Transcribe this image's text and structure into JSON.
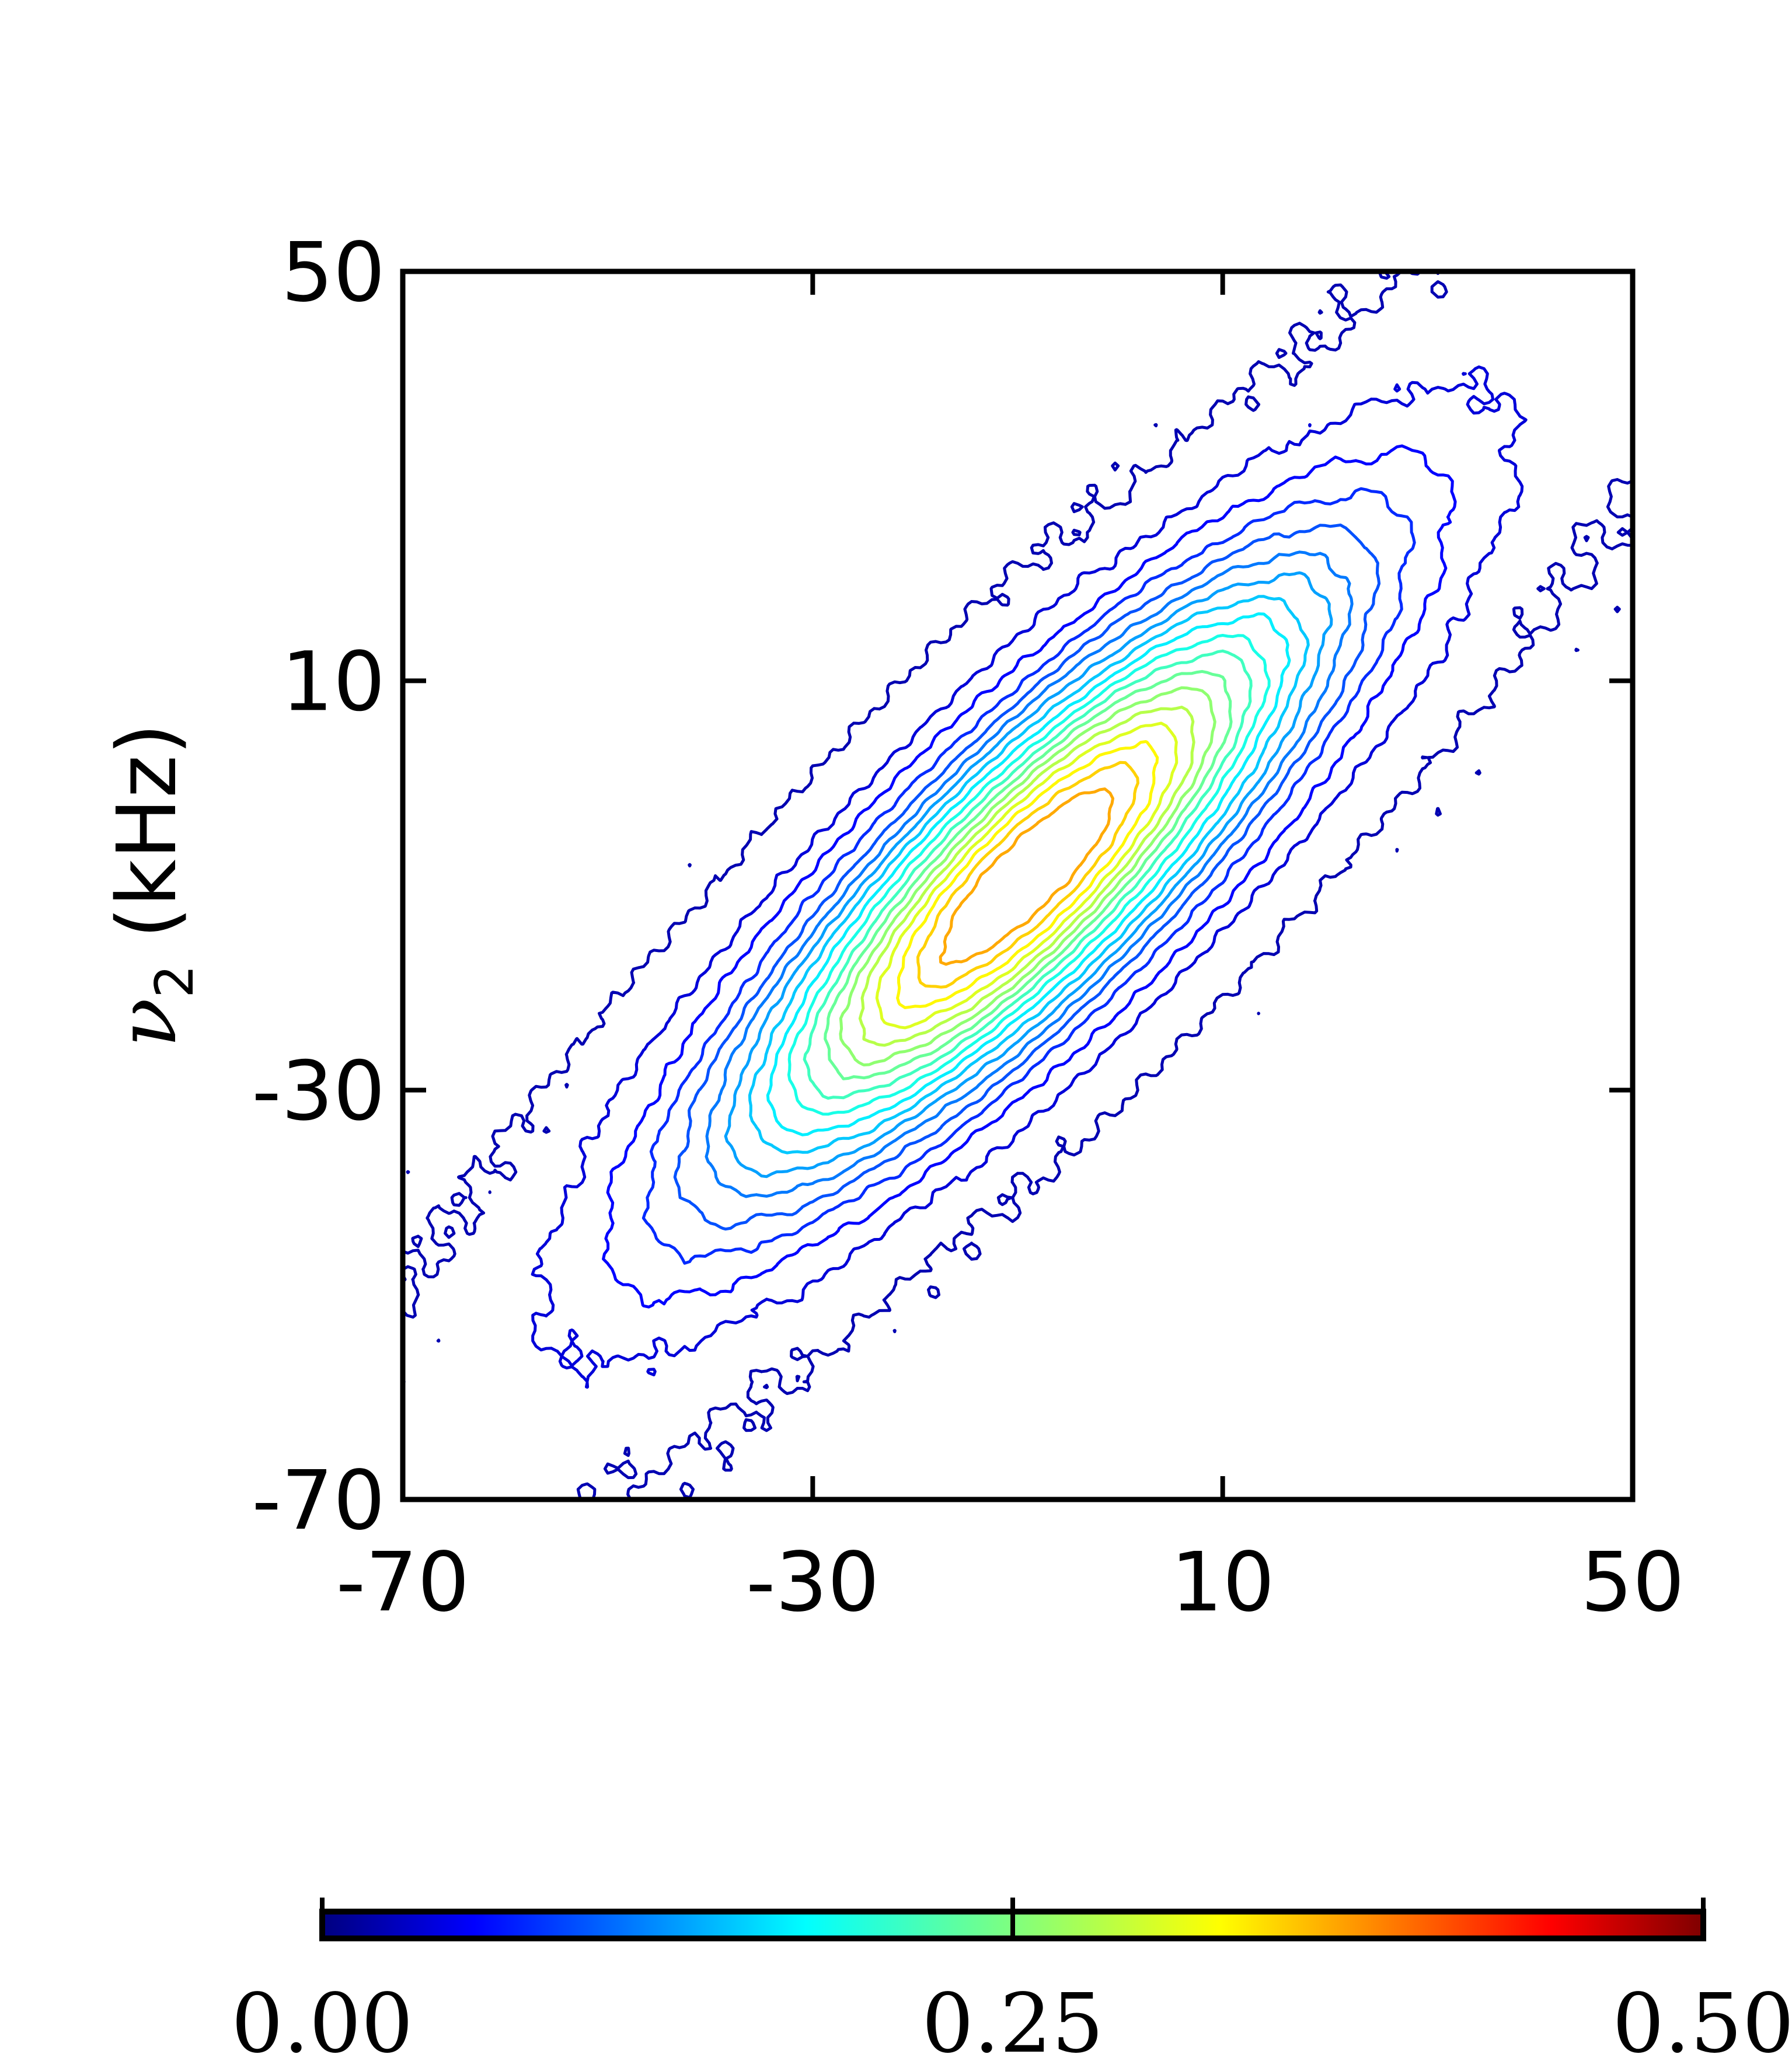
{
  "chart_data": {
    "type": "contour",
    "title": "",
    "xlabel": "",
    "ylabel": {
      "symbol": "ν",
      "subscript": "2",
      "unit": "(kHz)"
    },
    "xlim": [
      -70,
      50
    ],
    "ylim": [
      -70,
      50
    ],
    "xticks": [
      "-70",
      "-30",
      "10",
      "50"
    ],
    "yticks": [
      "-70",
      "-30",
      "10",
      "50"
    ],
    "grid": false,
    "colormap": "jet",
    "colorbar": {
      "orientation": "horizontal",
      "placement": "bottom",
      "range": [
        0.0,
        0.5
      ],
      "ticks": [
        "0.00",
        "0.25",
        "0.50"
      ]
    },
    "peak": {
      "center": [
        -9,
        -9
      ],
      "orientation_deg": 45,
      "max_level": 0.37
    },
    "levels": [
      0.01,
      0.03,
      0.05,
      0.07,
      0.09,
      0.11,
      0.13,
      0.15,
      0.17,
      0.19,
      0.21,
      0.23,
      0.25,
      0.27,
      0.29,
      0.31,
      0.33,
      0.35
    ],
    "colors": {
      "axis": "#000000",
      "low": "#00008f",
      "mid": "#00ffff",
      "high": "#ffff00"
    }
  }
}
